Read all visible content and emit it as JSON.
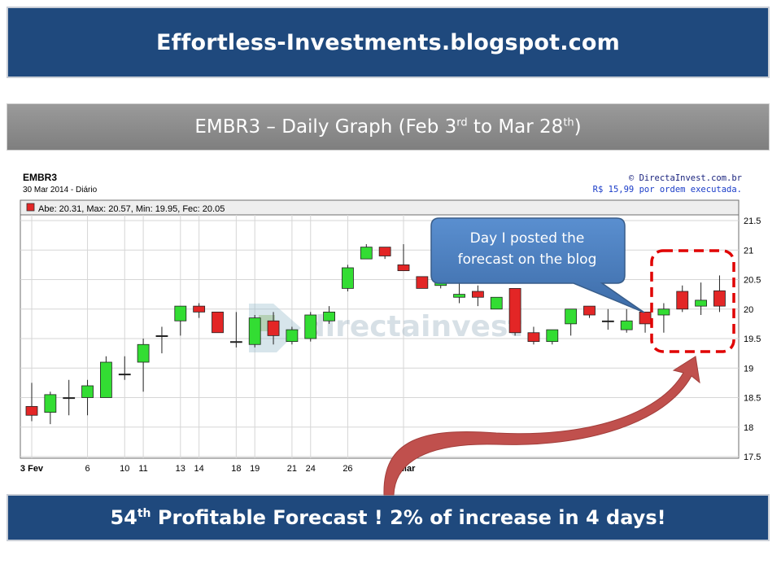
{
  "header": {
    "site_title": "Effortless-Investments.blogspot.com",
    "subtitle_part1": "EMBR3 – Daily Graph (Feb 3",
    "subtitle_sup1": "rd",
    "subtitle_part2": " to Mar 28",
    "subtitle_sup2": "th",
    "subtitle_part3": ")"
  },
  "chart_header": {
    "symbol": "EMBR3",
    "date_line": "30 Mar 2014 - Diário",
    "provider": "© DirectaInvest.com.br",
    "provider_note": "R$ 15,99 por ordem executada.",
    "legend_text": "Abe: 20.31, Max: 20.57, Min: 19.95, Fec: 20.05",
    "watermark": "directainvest"
  },
  "callout": {
    "line1": "Day I posted the",
    "line2": "forecast on the blog"
  },
  "footer": {
    "part1": "54",
    "sup": "th",
    "part2": " Profitable Forecast !  2% of increase in 4 days!"
  },
  "colors": {
    "banner_blue": "#1f497d",
    "banner_gray": "#8c8c8c",
    "up_candle": "#33dd33",
    "down_candle": "#e32626",
    "callout_fill": "#4a7ebb",
    "highlight_dash": "#e00000",
    "arrow": "#c0504d"
  },
  "chart_data": {
    "type": "candlestick",
    "title": "EMBR3",
    "x_tick_labels": [
      "3 Fev",
      "6",
      "11",
      "14",
      "19",
      "24",
      "5 Mar",
      "10",
      "13",
      "18",
      "21",
      "26"
    ],
    "y_tick_labels": [
      "17.5",
      "18",
      "18.5",
      "19",
      "19.5",
      "20",
      "20.5",
      "21",
      "21.5"
    ],
    "ylim": [
      17.5,
      21.5
    ],
    "grid": true,
    "candles": [
      {
        "date": "3 Fev",
        "open": 18.35,
        "high": 18.75,
        "low": 18.1,
        "close": 18.2
      },
      {
        "date": "4 Fev",
        "open": 18.25,
        "high": 18.6,
        "low": 18.05,
        "close": 18.55
      },
      {
        "date": "5 Fev",
        "open": 18.5,
        "high": 18.8,
        "low": 18.2,
        "close": 18.5
      },
      {
        "date": "6 Fev",
        "open": 18.5,
        "high": 18.8,
        "low": 18.2,
        "close": 18.7
      },
      {
        "date": "7 Fev",
        "open": 18.5,
        "high": 19.2,
        "low": 18.5,
        "close": 19.1
      },
      {
        "date": "10 Fev",
        "open": 18.9,
        "high": 19.2,
        "low": 18.8,
        "close": 18.9
      },
      {
        "date": "11 Fev",
        "open": 19.1,
        "high": 19.5,
        "low": 18.6,
        "close": 19.4
      },
      {
        "date": "12 Fev",
        "open": 19.55,
        "high": 19.7,
        "low": 19.25,
        "close": 19.55
      },
      {
        "date": "13 Fev",
        "open": 19.8,
        "high": 20.05,
        "low": 19.55,
        "close": 20.05
      },
      {
        "date": "14 Fev",
        "open": 20.05,
        "high": 20.1,
        "low": 19.85,
        "close": 19.95
      },
      {
        "date": "17 Fev",
        "open": 19.95,
        "high": 19.95,
        "low": 19.6,
        "close": 19.6
      },
      {
        "date": "18 Fev",
        "open": 19.45,
        "high": 19.95,
        "low": 19.35,
        "close": 19.45
      },
      {
        "date": "19 Fev",
        "open": 19.4,
        "high": 19.9,
        "low": 19.35,
        "close": 19.85
      },
      {
        "date": "20 Fev",
        "open": 19.8,
        "high": 19.95,
        "low": 19.4,
        "close": 19.55
      },
      {
        "date": "21 Fev",
        "open": 19.45,
        "high": 19.7,
        "low": 19.4,
        "close": 19.65
      },
      {
        "date": "24 Fev",
        "open": 19.5,
        "high": 19.95,
        "low": 19.45,
        "close": 19.9
      },
      {
        "date": "25 Fev",
        "open": 19.8,
        "high": 20.05,
        "low": 19.75,
        "close": 19.95
      },
      {
        "date": "26 Fev",
        "open": 20.35,
        "high": 20.75,
        "low": 20.3,
        "close": 20.7
      },
      {
        "date": "27 Fev",
        "open": 20.85,
        "high": 21.1,
        "low": 20.85,
        "close": 21.05
      },
      {
        "date": "28 Fev",
        "open": 21.05,
        "high": 21.05,
        "low": 20.85,
        "close": 20.9
      },
      {
        "date": "5 Mar",
        "open": 20.75,
        "high": 21.1,
        "low": 20.65,
        "close": 20.65
      },
      {
        "date": "6 Mar",
        "open": 20.55,
        "high": 20.55,
        "low": 20.35,
        "close": 20.35
      },
      {
        "date": "7 Mar",
        "open": 20.4,
        "high": 20.75,
        "low": 20.35,
        "close": 20.45
      },
      {
        "date": "10 Mar",
        "open": 20.2,
        "high": 20.45,
        "low": 20.1,
        "close": 20.25
      },
      {
        "date": "11 Mar",
        "open": 20.3,
        "high": 20.4,
        "low": 20.05,
        "close": 20.2
      },
      {
        "date": "12 Mar",
        "open": 20.0,
        "high": 20.2,
        "low": 20.0,
        "close": 20.2
      },
      {
        "date": "13 Mar",
        "open": 20.35,
        "high": 20.35,
        "low": 19.55,
        "close": 19.6
      },
      {
        "date": "14 Mar",
        "open": 19.6,
        "high": 19.7,
        "low": 19.4,
        "close": 19.45
      },
      {
        "date": "17 Mar",
        "open": 19.45,
        "high": 19.65,
        "low": 19.4,
        "close": 19.65
      },
      {
        "date": "18 Mar",
        "open": 19.75,
        "high": 20.0,
        "low": 19.55,
        "close": 20.0
      },
      {
        "date": "19 Mar",
        "open": 20.05,
        "high": 20.05,
        "low": 19.85,
        "close": 19.9
      },
      {
        "date": "20 Mar",
        "open": 19.8,
        "high": 20.0,
        "low": 19.65,
        "close": 19.8
      },
      {
        "date": "21 Mar",
        "open": 19.65,
        "high": 20.0,
        "low": 19.6,
        "close": 19.8
      },
      {
        "date": "24 Mar",
        "open": 19.95,
        "high": 19.95,
        "low": 19.6,
        "close": 19.75
      },
      {
        "date": "25 Mar",
        "open": 19.9,
        "high": 20.1,
        "low": 19.6,
        "close": 20.0
      },
      {
        "date": "26 Mar",
        "open": 20.3,
        "high": 20.4,
        "low": 19.95,
        "close": 20.0
      },
      {
        "date": "27 Mar",
        "open": 20.05,
        "high": 20.45,
        "low": 19.9,
        "close": 20.15
      },
      {
        "date": "28 Mar",
        "open": 20.31,
        "high": 20.57,
        "low": 19.95,
        "close": 20.05
      }
    ]
  }
}
